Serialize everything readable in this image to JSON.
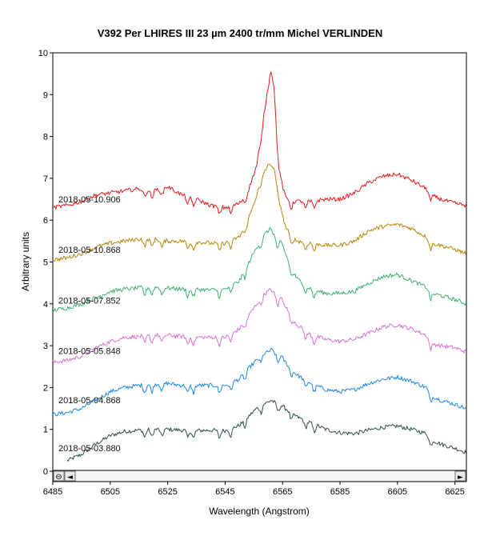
{
  "chart_data": {
    "type": "line",
    "title": "V392 Per   LHIRES III 23 µm 2400 tr/mm   Michel VERLINDEN",
    "xlabel": "Wavelength (Angstrom)",
    "ylabel": "Arbitrary units",
    "xlim": [
      6485,
      6629
    ],
    "ylim": [
      0,
      10
    ],
    "xticks": [
      "6485",
      "6505",
      "6525",
      "6545",
      "6565",
      "6585",
      "6605",
      "6625"
    ],
    "xtick_values": [
      6485,
      6505,
      6525,
      6545,
      6565,
      6585,
      6605,
      6625
    ],
    "yticks": [
      "0",
      "1",
      "2",
      "3",
      "4",
      "5",
      "6",
      "7",
      "8",
      "9",
      "10"
    ],
    "ytick_values": [
      0,
      1,
      2,
      3,
      4,
      5,
      6,
      7,
      8,
      9,
      10
    ],
    "grid": false,
    "series": [
      {
        "name": "2018-05-03.880",
        "color": "#2f4f4f",
        "x": [
          6490,
          6495,
          6500,
          6505,
          6510,
          6515,
          6520,
          6525,
          6530,
          6535,
          6540,
          6545,
          6550,
          6553,
          6556,
          6558,
          6560,
          6561,
          6562,
          6563,
          6564,
          6565,
          6566,
          6568,
          6570,
          6575,
          6580,
          6585,
          6590,
          6595,
          6600,
          6605,
          6610,
          6615,
          6617,
          6620,
          6625,
          6629
        ],
        "y": [
          0.25,
          0.4,
          0.65,
          0.85,
          0.95,
          0.98,
          1.0,
          1.0,
          0.98,
          0.97,
          0.98,
          0.97,
          1.1,
          1.3,
          1.5,
          1.6,
          1.65,
          1.7,
          1.65,
          1.6,
          1.6,
          1.55,
          1.5,
          1.4,
          1.3,
          1.15,
          1.0,
          0.92,
          0.9,
          0.98,
          1.05,
          1.08,
          1.0,
          0.9,
          0.75,
          0.65,
          0.55,
          0.45
        ],
        "label_y": 0.55
      },
      {
        "name": "2018-05-04.868",
        "color": "#1e88e5",
        "x": [
          6485,
          6490,
          6495,
          6500,
          6505,
          6510,
          6515,
          6520,
          6525,
          6530,
          6535,
          6540,
          6545,
          6550,
          6553,
          6556,
          6558,
          6560,
          6561,
          6562,
          6563,
          6564,
          6565,
          6566,
          6568,
          6570,
          6575,
          6580,
          6585,
          6590,
          6595,
          6600,
          6605,
          6610,
          6615,
          6617,
          6620,
          6625,
          6629
        ],
        "y": [
          1.35,
          1.4,
          1.5,
          1.7,
          1.9,
          2.0,
          2.05,
          2.08,
          2.1,
          2.05,
          2.05,
          2.05,
          2.05,
          2.2,
          2.45,
          2.65,
          2.8,
          2.85,
          2.9,
          2.85,
          2.75,
          2.8,
          2.7,
          2.6,
          2.45,
          2.3,
          2.1,
          1.95,
          1.9,
          1.95,
          2.1,
          2.2,
          2.25,
          2.15,
          2.0,
          1.8,
          1.7,
          1.6,
          1.5
        ],
        "label_y": 1.7
      },
      {
        "name": "2018-05-05.848",
        "color": "#da70d6",
        "x": [
          6485,
          6490,
          6495,
          6500,
          6505,
          6510,
          6515,
          6520,
          6525,
          6530,
          6535,
          6540,
          6545,
          6550,
          6553,
          6556,
          6558,
          6560,
          6561,
          6562,
          6563,
          6564,
          6565,
          6566,
          6568,
          6570,
          6575,
          6580,
          6585,
          6590,
          6595,
          6600,
          6605,
          6610,
          6615,
          6617,
          6620,
          6625,
          6629
        ],
        "y": [
          2.6,
          2.65,
          2.75,
          2.95,
          3.1,
          3.2,
          3.22,
          3.25,
          3.25,
          3.22,
          3.2,
          3.2,
          3.2,
          3.4,
          3.7,
          4.0,
          4.2,
          4.3,
          4.35,
          4.25,
          4.1,
          4.2,
          4.1,
          3.95,
          3.7,
          3.5,
          3.25,
          3.15,
          3.1,
          3.15,
          3.3,
          3.45,
          3.5,
          3.4,
          3.25,
          3.05,
          3.0,
          2.95,
          2.85
        ],
        "label_y": 2.88
      },
      {
        "name": "2018-05-07.852",
        "color": "#3cb371",
        "x": [
          6485,
          6490,
          6495,
          6500,
          6505,
          6510,
          6515,
          6520,
          6525,
          6530,
          6535,
          6540,
          6545,
          6550,
          6553,
          6556,
          6558,
          6560,
          6561,
          6562,
          6563,
          6564,
          6565,
          6566,
          6568,
          6570,
          6575,
          6580,
          6585,
          6590,
          6595,
          6600,
          6605,
          6610,
          6615,
          6617,
          6620,
          6625,
          6629
        ],
        "y": [
          3.85,
          3.9,
          4.0,
          4.15,
          4.3,
          4.35,
          4.38,
          4.4,
          4.38,
          4.35,
          4.35,
          4.33,
          4.35,
          4.55,
          4.95,
          5.35,
          5.6,
          5.75,
          5.8,
          5.65,
          5.45,
          5.55,
          5.4,
          5.2,
          4.85,
          4.6,
          4.35,
          4.25,
          4.25,
          4.3,
          4.5,
          4.65,
          4.7,
          4.55,
          4.4,
          4.25,
          4.2,
          4.1,
          4.0
        ],
        "label_y": 4.08
      },
      {
        "name": "2018-05-10.868",
        "color": "#b8860b",
        "x": [
          6485,
          6490,
          6495,
          6500,
          6505,
          6510,
          6515,
          6520,
          6525,
          6530,
          6535,
          6540,
          6545,
          6550,
          6553,
          6556,
          6558,
          6560,
          6561,
          6562,
          6563,
          6564,
          6565,
          6566,
          6568,
          6570,
          6575,
          6580,
          6585,
          6590,
          6595,
          6600,
          6605,
          6610,
          6615,
          6617,
          6620,
          6625,
          6629
        ],
        "y": [
          5.05,
          5.1,
          5.2,
          5.35,
          5.45,
          5.5,
          5.55,
          5.55,
          5.5,
          5.5,
          5.48,
          5.45,
          5.45,
          5.6,
          6.0,
          6.6,
          7.1,
          7.3,
          7.35,
          7.2,
          6.9,
          6.5,
          6.1,
          5.85,
          5.6,
          5.5,
          5.45,
          5.4,
          5.4,
          5.5,
          5.75,
          5.85,
          5.9,
          5.8,
          5.6,
          5.45,
          5.4,
          5.3,
          5.2
        ],
        "label_y": 5.3
      },
      {
        "name": "2018-05-10.906",
        "color": "#e31a1c",
        "x": [
          6485,
          6490,
          6495,
          6500,
          6505,
          6510,
          6515,
          6520,
          6525,
          6530,
          6535,
          6540,
          6545,
          6550,
          6553,
          6556,
          6558,
          6560,
          6561,
          6562,
          6563,
          6564,
          6565,
          6566,
          6568,
          6570,
          6575,
          6580,
          6585,
          6590,
          6595,
          6600,
          6605,
          6610,
          6615,
          6617,
          6620,
          6625,
          6629
        ],
        "y": [
          6.3,
          6.35,
          6.45,
          6.6,
          6.65,
          6.7,
          6.75,
          6.7,
          6.8,
          6.6,
          6.5,
          6.35,
          6.3,
          6.4,
          6.7,
          7.3,
          8.3,
          9.2,
          9.6,
          9.2,
          8.0,
          7.2,
          6.8,
          6.55,
          6.45,
          6.45,
          6.45,
          6.5,
          6.5,
          6.65,
          6.9,
          7.05,
          7.1,
          6.95,
          6.75,
          6.6,
          6.5,
          6.4,
          6.35
        ],
        "label_y": 6.5
      }
    ],
    "scrollbar": {
      "left_button": "◄",
      "right_button": "►",
      "zoom_button": "⊖"
    }
  }
}
